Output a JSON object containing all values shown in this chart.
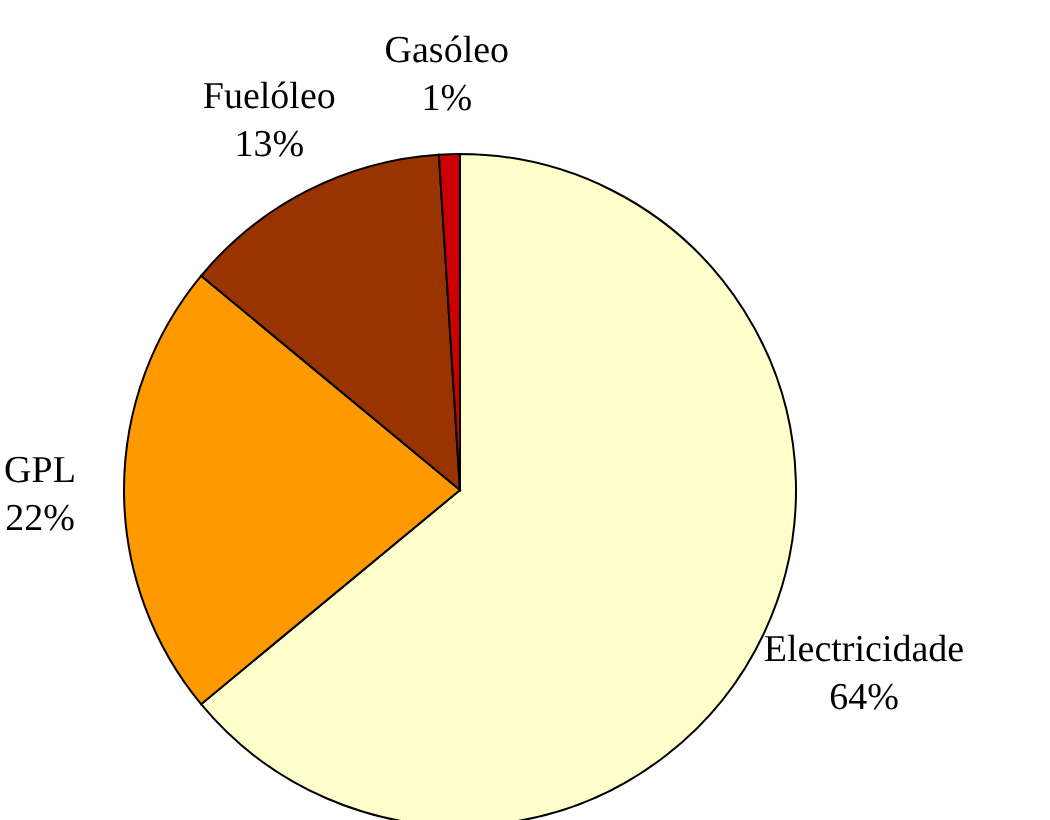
{
  "chart_data": {
    "type": "pie",
    "categories": [
      "Electricidade",
      "GPL",
      "Fuelóleo",
      "Gasóleo"
    ],
    "values": [
      64,
      22,
      13,
      1
    ],
    "colors": [
      "#ffffcc",
      "#ff9900",
      "#993300",
      "#cc0000"
    ],
    "value_labels": [
      "64%",
      "22%",
      "13%",
      "1%"
    ]
  }
}
